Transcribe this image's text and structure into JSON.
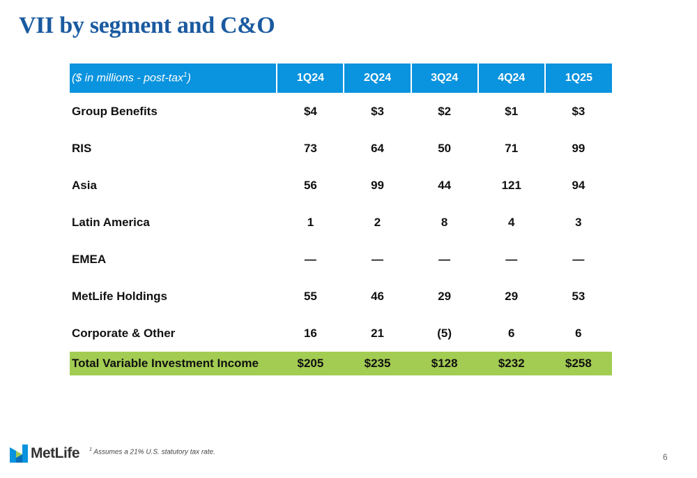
{
  "title": "VII by segment and C&O",
  "table": {
    "header_label": "($ in millions - post-tax",
    "header_sup": "1",
    "header_close": ")",
    "columns": [
      "1Q24",
      "2Q24",
      "3Q24",
      "4Q24",
      "1Q25"
    ],
    "rows": [
      {
        "label": "Group Benefits",
        "values": [
          "$4",
          "$3",
          "$2",
          "$1",
          "$3"
        ]
      },
      {
        "label": "RIS",
        "values": [
          "73",
          "64",
          "50",
          "71",
          "99"
        ]
      },
      {
        "label": "Asia",
        "values": [
          "56",
          "99",
          "44",
          "121",
          "94"
        ]
      },
      {
        "label": "Latin America",
        "values": [
          "1",
          "2",
          "8",
          "4",
          "3"
        ]
      },
      {
        "label": "EMEA",
        "values": [
          "—",
          "—",
          "—",
          "—",
          "—"
        ]
      },
      {
        "label": "MetLife Holdings",
        "values": [
          "55",
          "46",
          "29",
          "29",
          "53"
        ]
      },
      {
        "label": "Corporate & Other",
        "values": [
          "16",
          "21",
          "(5)",
          "6",
          "6"
        ]
      }
    ],
    "total": {
      "label": "Total Variable Investment Income",
      "values": [
        "$205",
        "$235",
        "$128",
        "$232",
        "$258"
      ]
    }
  },
  "footnote": {
    "sup": "1",
    "text": " Assumes a 21% U.S. statutory tax rate."
  },
  "logo": {
    "text": "MetLife",
    "icon": "metlife-m-icon"
  },
  "page_number": "6",
  "colors": {
    "title": "#1a5aa0",
    "header_bg": "#0a93de",
    "total_bg": "#a3cc52",
    "logo_blue": "#0a93de",
    "logo_green": "#a3cc52"
  }
}
